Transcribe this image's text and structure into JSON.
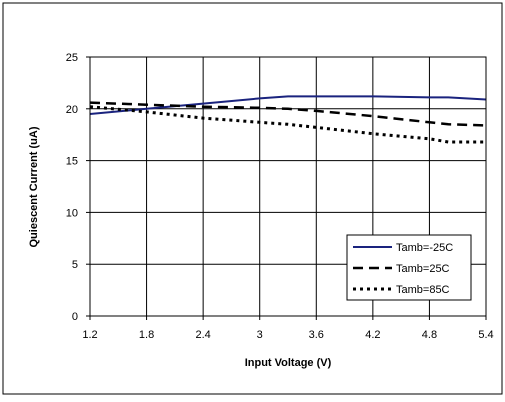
{
  "chart_data": {
    "type": "line",
    "title": "",
    "xlabel": "Input Voltage (V)",
    "ylabel": "Quiescent Current (uA)",
    "xlim": [
      1.2,
      5.4
    ],
    "ylim": [
      0,
      25
    ],
    "x_ticks": [
      "1.2",
      "1.8",
      "2.4",
      "3",
      "3.6",
      "4.2",
      "4.8",
      "5.4"
    ],
    "y_ticks": [
      "0",
      "5",
      "10",
      "15",
      "20",
      "25"
    ],
    "grid": true,
    "legend_position": "bottom-right",
    "series": [
      {
        "name": "Tamb=-25C",
        "style": "solid",
        "color": "#1a237e",
        "x": [
          1.2,
          1.8,
          2.4,
          3.0,
          3.3,
          3.6,
          4.2,
          4.8,
          5.0,
          5.4
        ],
        "y": [
          19.5,
          20.0,
          20.5,
          21.0,
          21.2,
          21.2,
          21.2,
          21.1,
          21.1,
          20.9
        ]
      },
      {
        "name": "Tamb=25C",
        "style": "dashed",
        "color": "#000000",
        "x": [
          1.2,
          1.8,
          2.4,
          3.0,
          3.3,
          3.6,
          4.2,
          4.8,
          5.0,
          5.4
        ],
        "y": [
          20.6,
          20.4,
          20.2,
          20.1,
          20.0,
          19.8,
          19.3,
          18.7,
          18.5,
          18.4
        ]
      },
      {
        "name": "Tamb=85C",
        "style": "dotted",
        "color": "#000000",
        "x": [
          1.2,
          1.8,
          2.4,
          3.0,
          3.3,
          3.6,
          4.2,
          4.8,
          5.0,
          5.4
        ],
        "y": [
          20.2,
          19.7,
          19.1,
          18.7,
          18.5,
          18.2,
          17.6,
          17.1,
          16.8,
          16.8
        ]
      }
    ]
  }
}
